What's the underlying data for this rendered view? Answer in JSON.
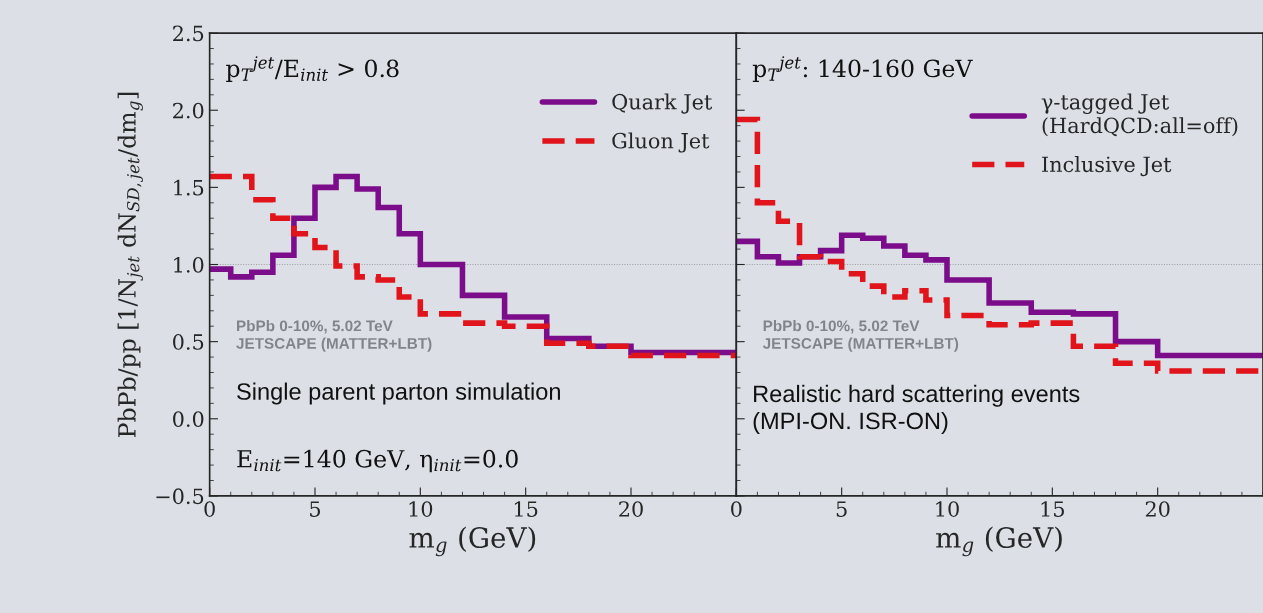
{
  "chart_data": [
    {
      "type": "histogram",
      "bins": [
        0,
        1,
        2,
        3,
        4,
        5,
        6,
        7,
        8,
        9,
        10,
        12,
        14,
        16,
        18,
        20,
        25
      ],
      "xlim": [
        0,
        25
      ],
      "ylim": [
        -0.5,
        2.5
      ],
      "xticks": [
        0,
        5,
        10,
        15,
        20
      ],
      "yticks": [
        {
          "value": -0.5,
          "label": "−0.5"
        },
        {
          "value": 0,
          "label": "0.0"
        },
        0.5,
        {
          "value": 1,
          "label": "1.0"
        },
        1.5,
        {
          "value": 2,
          "label": "2.0"
        },
        2.5
      ],
      "xlabel": "m$_{g}$ (GeV)",
      "ylabel": "PbPb/pp [1/N$_{jet}$ dN$_{SD,jet}$/dm$_{g}$]",
      "legend": "top right",
      "grid": false,
      "series": [
        {
          "name": "Quark Jet",
          "color": "#7b0d8a",
          "line_style": "solid",
          "values": [
            0.97,
            0.92,
            0.95,
            1.06,
            1.3,
            1.5,
            1.57,
            1.49,
            1.37,
            1.2,
            1.0,
            0.8,
            0.66,
            0.52,
            0.47,
            0.43
          ]
        },
        {
          "name": "Gluon Jet",
          "color": "#e0141a",
          "line_style": "dashed",
          "values": [
            1.57,
            1.57,
            1.42,
            1.3,
            1.2,
            1.11,
            0.99,
            0.92,
            0.9,
            0.79,
            0.68,
            0.62,
            0.6,
            0.49,
            0.47,
            0.41
          ]
        }
      ],
      "ref_lines": [
        {
          "axis": "y",
          "value": 1.0,
          "color": "#999999",
          "line_style": "dotted"
        }
      ],
      "annotations": [
        "p$_{T}$$^{jet}$/E$_{init}$ > 0.8",
        "PbPb 0-10%, 5.02 TeV\nJETSCAPE (MATTER+LBT)",
        "Single parent parton simulation",
        "E$_{init}$=140 GeV, η$_{init}$=0.0"
      ]
    },
    {
      "type": "histogram",
      "bins": [
        0,
        1,
        2,
        3,
        4,
        5,
        6,
        7,
        8,
        9,
        10,
        12,
        14,
        16,
        18,
        20,
        25
      ],
      "xlim": [
        0,
        25
      ],
      "ylim": [
        -0.5,
        2.5
      ],
      "xticks": [
        0,
        5,
        10,
        15,
        20
      ],
      "yticks": [
        -0.5,
        0.0,
        0.5,
        1.0,
        1.5,
        2.0,
        2.5
      ],
      "xlabel": "m$_{g}$ (GeV)",
      "tick_labels": "x",
      "legend": "top right",
      "grid": false,
      "series": [
        {
          "name": "γ-tagged Jet\n(HardQCD:all=off)",
          "color": "#7b0d8a",
          "line_style": "solid",
          "values": [
            1.15,
            1.05,
            1.01,
            1.05,
            1.09,
            1.19,
            1.17,
            1.12,
            1.06,
            1.03,
            0.9,
            0.75,
            0.69,
            0.68,
            0.5,
            0.41
          ]
        },
        {
          "name": "Inclusive Jet",
          "color": "#e0141a",
          "line_style": "dashed",
          "values": [
            1.94,
            1.4,
            1.28,
            1.05,
            1.02,
            0.94,
            0.86,
            0.79,
            0.83,
            0.77,
            0.67,
            0.61,
            0.62,
            0.47,
            0.36,
            0.31
          ]
        }
      ],
      "ref_lines": [
        {
          "axis": "y",
          "value": 1.0,
          "color": "#999999",
          "line_style": "dotted"
        }
      ],
      "annotations": [
        "p$_{T}$$^{jet}$: 140-160 GeV",
        "PbPb 0-10%, 5.02 TeV\nJETSCAPE (MATTER+LBT)",
        "Realistic hard scattering events\n(MPI-ON. ISR-ON)"
      ]
    }
  ]
}
